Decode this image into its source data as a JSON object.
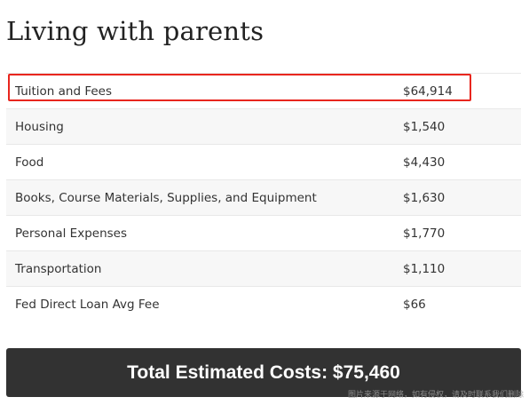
{
  "page": {
    "title": "Living with parents"
  },
  "costs": {
    "rows": [
      {
        "label": "Tuition and Fees",
        "value": "$64,914"
      },
      {
        "label": "Housing",
        "value": "$1,540"
      },
      {
        "label": "Food",
        "value": "$4,430"
      },
      {
        "label": "Books, Course Materials, Supplies, and Equipment",
        "value": "$1,630"
      },
      {
        "label": "Personal Expenses",
        "value": "$1,770"
      },
      {
        "label": "Transportation",
        "value": "$1,110"
      },
      {
        "label": "Fed Direct Loan Avg Fee",
        "value": "$66"
      }
    ]
  },
  "total": {
    "text": "Total Estimated Costs: $75,460"
  },
  "watermark": {
    "text": "图片来源于网络，如有侵权，请及时联系我们删除"
  },
  "colors": {
    "highlight": "#e8261e",
    "total_bar": "#323232"
  }
}
